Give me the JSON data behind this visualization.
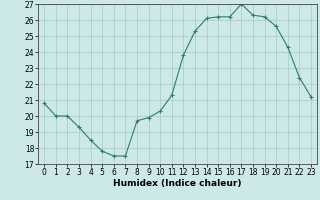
{
  "x": [
    0,
    1,
    2,
    3,
    4,
    5,
    6,
    7,
    8,
    9,
    10,
    11,
    12,
    13,
    14,
    15,
    16,
    17,
    18,
    19,
    20,
    21,
    22,
    23
  ],
  "y": [
    20.8,
    20.0,
    20.0,
    19.3,
    18.5,
    17.8,
    17.5,
    17.5,
    19.7,
    19.9,
    20.3,
    21.3,
    23.8,
    25.3,
    26.1,
    26.2,
    26.2,
    27.0,
    26.3,
    26.2,
    25.6,
    24.3,
    22.4,
    21.2
  ],
  "line_color": "#2e7d6e",
  "marker": "+",
  "marker_size": 3,
  "marker_lw": 0.8,
  "line_width": 0.8,
  "bg_color": "#cce8e8",
  "grid_color": "#aac8c8",
  "xlabel": "Humidex (Indice chaleur)",
  "ylim": [
    17,
    27
  ],
  "xlim_min": -0.5,
  "xlim_max": 23.5,
  "yticks": [
    17,
    18,
    19,
    20,
    21,
    22,
    23,
    24,
    25,
    26,
    27
  ],
  "xticks": [
    0,
    1,
    2,
    3,
    4,
    5,
    6,
    7,
    8,
    9,
    10,
    11,
    12,
    13,
    14,
    15,
    16,
    17,
    18,
    19,
    20,
    21,
    22,
    23
  ],
  "tick_fontsize": 5.5,
  "xlabel_fontsize": 6.5,
  "xlabel_fontweight": "bold"
}
